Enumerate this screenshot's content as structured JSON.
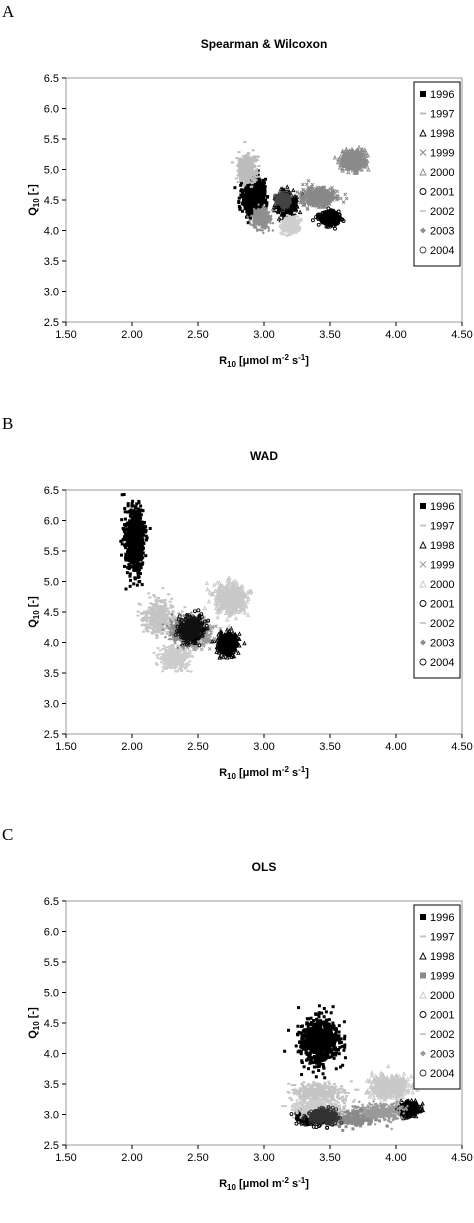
{
  "panels": [
    {
      "letter": "A"
    },
    {
      "letter": "B"
    },
    {
      "letter": "C"
    }
  ],
  "chart_data": [
    {
      "type": "scatter",
      "title": "Spearman & Wilcoxon",
      "xlabel": "R10 [μmol m-2 s-1]",
      "ylabel": "Q10 [-]",
      "xlim": [
        1.5,
        4.5
      ],
      "ylim": [
        2.5,
        6.5
      ],
      "xticks": [
        "1.50",
        "2.00",
        "2.50",
        "3.00",
        "3.50",
        "4.00",
        "4.50"
      ],
      "yticks": [
        "2.5",
        "3.0",
        "3.5",
        "4.0",
        "4.5",
        "5.0",
        "5.5",
        "6.0",
        "6.5"
      ],
      "grid": false,
      "legend_position": "right",
      "series": [
        {
          "name": "1996",
          "marker": "square",
          "color": "#000000",
          "center": [
            2.92,
            4.55
          ],
          "spread": [
            0.09,
            0.32
          ]
        },
        {
          "name": "1997",
          "marker": "dash",
          "color": "#bdbdbd",
          "center": [
            2.87,
            5.0
          ],
          "spread": [
            0.07,
            0.24
          ]
        },
        {
          "name": "1998",
          "marker": "triangle",
          "color": "#000000",
          "center": [
            3.17,
            4.43
          ],
          "spread": [
            0.08,
            0.22
          ]
        },
        {
          "name": "1999",
          "marker": "x",
          "color": "#888888",
          "center": [
            3.42,
            4.55
          ],
          "spread": [
            0.14,
            0.18
          ]
        },
        {
          "name": "2000",
          "marker": "triangle",
          "color": "#8a8a8a",
          "center": [
            3.68,
            5.15
          ],
          "spread": [
            0.1,
            0.18
          ]
        },
        {
          "name": "2001",
          "marker": "circle",
          "color": "#000000",
          "center": [
            3.5,
            4.2
          ],
          "spread": [
            0.08,
            0.12
          ]
        },
        {
          "name": "2002",
          "marker": "dash",
          "color": "#cfcfcf",
          "center": [
            3.2,
            4.08
          ],
          "spread": [
            0.07,
            0.14
          ]
        },
        {
          "name": "2003",
          "marker": "diamond",
          "color": "#8f8f8f",
          "center": [
            2.98,
            4.2
          ],
          "spread": [
            0.07,
            0.18
          ]
        },
        {
          "name": "2004",
          "marker": "circle",
          "color": "#444444",
          "center": [
            3.15,
            4.5
          ],
          "spread": [
            0.05,
            0.1
          ]
        }
      ]
    },
    {
      "type": "scatter",
      "title": "WAD",
      "xlabel": "R10 [μmol m-2 s-1]",
      "ylabel": "Q10 [-]",
      "xlim": [
        1.5,
        4.5
      ],
      "ylim": [
        2.5,
        6.5
      ],
      "xticks": [
        "1.50",
        "2.00",
        "2.50",
        "3.00",
        "3.50",
        "4.00",
        "4.50"
      ],
      "yticks": [
        "2.5",
        "3.0",
        "3.5",
        "4.0",
        "4.5",
        "5.0",
        "5.5",
        "6.0",
        "6.5"
      ],
      "grid": false,
      "legend_position": "right",
      "series": [
        {
          "name": "1996",
          "marker": "square",
          "color": "#000000",
          "center": [
            2.02,
            5.65
          ],
          "spread": [
            0.08,
            0.6
          ]
        },
        {
          "name": "1997",
          "marker": "dash",
          "color": "#c4c4c4",
          "center": [
            2.2,
            4.4
          ],
          "spread": [
            0.14,
            0.32
          ]
        },
        {
          "name": "1998",
          "marker": "triangle",
          "color": "#000000",
          "center": [
            2.72,
            3.98
          ],
          "spread": [
            0.08,
            0.2
          ]
        },
        {
          "name": "1999",
          "marker": "x",
          "color": "#9a9a9a",
          "center": [
            2.48,
            4.15
          ],
          "spread": [
            0.12,
            0.22
          ]
        },
        {
          "name": "2000",
          "marker": "triangle",
          "color": "#c8c8c8",
          "center": [
            2.75,
            4.72
          ],
          "spread": [
            0.13,
            0.28
          ]
        },
        {
          "name": "2001",
          "marker": "circle",
          "color": "#000000",
          "center": [
            2.45,
            4.22
          ],
          "spread": [
            0.1,
            0.2
          ]
        },
        {
          "name": "2002",
          "marker": "dash",
          "color": "#cccccc",
          "center": [
            2.32,
            3.75
          ],
          "spread": [
            0.12,
            0.2
          ]
        },
        {
          "name": "2003",
          "marker": "diamond",
          "color": "#8c8c8c",
          "center": [
            2.38,
            4.2
          ],
          "spread": [
            0.1,
            0.22
          ]
        },
        {
          "name": "2004",
          "marker": "circle",
          "color": "#111111",
          "center": [
            2.44,
            4.22
          ],
          "spread": [
            0.08,
            0.18
          ]
        }
      ]
    },
    {
      "type": "scatter",
      "title": "OLS",
      "xlabel": "R10 [μmol m-2 s-1]",
      "ylabel": "Q10 [-]",
      "xlim": [
        1.5,
        4.5
      ],
      "ylim": [
        2.5,
        6.5
      ],
      "xticks": [
        "1.50",
        "2.00",
        "2.50",
        "3.00",
        "3.50",
        "4.00",
        "4.50"
      ],
      "yticks": [
        "2.5",
        "3.0",
        "3.5",
        "4.0",
        "4.5",
        "5.0",
        "5.5",
        "6.0",
        "6.5"
      ],
      "grid": false,
      "legend_position": "right",
      "series": [
        {
          "name": "1996",
          "marker": "square",
          "color": "#000000",
          "center": [
            3.42,
            4.2
          ],
          "spread": [
            0.16,
            0.42
          ]
        },
        {
          "name": "1997",
          "marker": "dash",
          "color": "#c4c4c4",
          "center": [
            3.42,
            3.35
          ],
          "spread": [
            0.2,
            0.18
          ]
        },
        {
          "name": "1998",
          "marker": "triangle",
          "color": "#000000",
          "center": [
            4.1,
            3.1
          ],
          "spread": [
            0.08,
            0.12
          ]
        },
        {
          "name": "1999",
          "marker": "square",
          "color": "#8a8a8a",
          "center": [
            3.62,
            2.95
          ],
          "spread": [
            0.24,
            0.14
          ]
        },
        {
          "name": "2000",
          "marker": "triangle",
          "color": "#c8c8c8",
          "center": [
            3.95,
            3.45
          ],
          "spread": [
            0.16,
            0.2
          ]
        },
        {
          "name": "2001",
          "marker": "circle",
          "color": "#000000",
          "center": [
            3.38,
            2.95
          ],
          "spread": [
            0.14,
            0.12
          ]
        },
        {
          "name": "2002",
          "marker": "dash",
          "color": "#cccccc",
          "center": [
            3.4,
            3.1
          ],
          "spread": [
            0.2,
            0.14
          ]
        },
        {
          "name": "2003",
          "marker": "diamond",
          "color": "#9a9a9a",
          "center": [
            3.9,
            3.05
          ],
          "spread": [
            0.16,
            0.14
          ]
        },
        {
          "name": "2004",
          "marker": "circle",
          "color": "#333333",
          "center": [
            3.45,
            2.97
          ],
          "spread": [
            0.1,
            0.1
          ]
        }
      ]
    }
  ]
}
